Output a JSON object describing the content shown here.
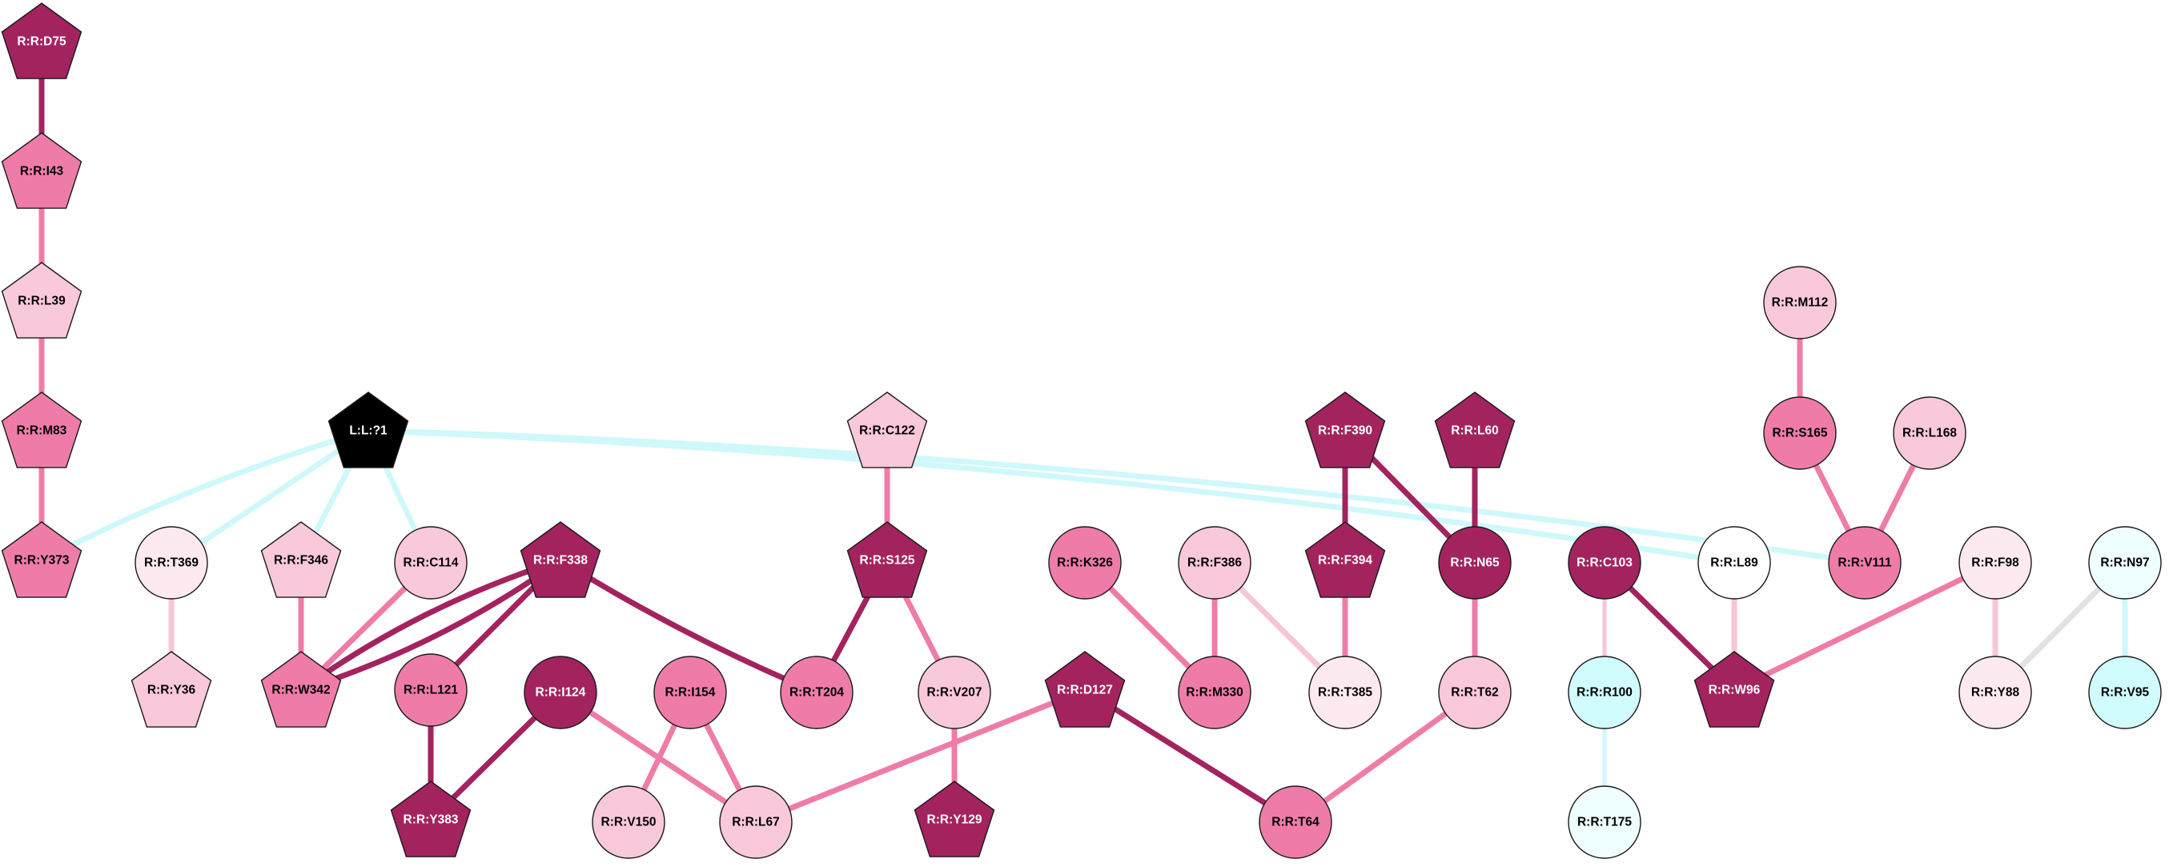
{
  "colors": {
    "dark": "#A3235F",
    "mid": "#EF7CA8",
    "light": "#FAC8DB",
    "pale": "#FDEAF1",
    "white": "#FFFFFF",
    "cyan": "#D0FCFD",
    "cyan_pale": "#EFFEFE",
    "black": "#000000",
    "edge_dark": "#A3235F",
    "edge_mid": "#EF7CA8",
    "edge_light": "#F6C6D6",
    "edge_cyan": "#CFF8FB",
    "edge_grey": "#E2E2E2"
  },
  "nodes": [
    {
      "id": "R:R:D75",
      "label": "R:R:D75",
      "shape": "pentagon",
      "fill": "dark",
      "text": "white"
    },
    {
      "id": "R:R:I43",
      "label": "R:R:I43",
      "shape": "pentagon",
      "fill": "mid",
      "text": "black"
    },
    {
      "id": "R:R:L39",
      "label": "R:R:L39",
      "shape": "pentagon",
      "fill": "light",
      "text": "black"
    },
    {
      "id": "R:R:M83",
      "label": "R:R:M83",
      "shape": "pentagon",
      "fill": "mid",
      "text": "black"
    },
    {
      "id": "R:R:Y373",
      "label": "R:R:Y373",
      "shape": "pentagon",
      "fill": "mid",
      "text": "black"
    },
    {
      "id": "L:L:?1",
      "label": "L:L:?1",
      "shape": "pentagon",
      "fill": "black",
      "text": "white"
    },
    {
      "id": "R:R:T369",
      "label": "R:R:T369",
      "shape": "circle",
      "fill": "pale",
      "text": "black"
    },
    {
      "id": "R:R:Y36",
      "label": "R:R:Y36",
      "shape": "pentagon",
      "fill": "light",
      "text": "black"
    },
    {
      "id": "R:R:F346",
      "label": "R:R:F346",
      "shape": "pentagon",
      "fill": "light",
      "text": "black"
    },
    {
      "id": "R:R:C114",
      "label": "R:R:C114",
      "shape": "circle",
      "fill": "light",
      "text": "black"
    },
    {
      "id": "R:R:W342",
      "label": "R:R:W342",
      "shape": "pentagon",
      "fill": "mid",
      "text": "black"
    },
    {
      "id": "R:R:F338",
      "label": "R:R:F338",
      "shape": "pentagon",
      "fill": "dark",
      "text": "white"
    },
    {
      "id": "R:R:L121",
      "label": "R:R:L121",
      "shape": "circle",
      "fill": "mid",
      "text": "black"
    },
    {
      "id": "R:R:Y383",
      "label": "R:R:Y383",
      "shape": "pentagon",
      "fill": "dark",
      "text": "white"
    },
    {
      "id": "R:R:I124",
      "label": "R:R:I124",
      "shape": "circle",
      "fill": "dark",
      "text": "white"
    },
    {
      "id": "R:R:I154",
      "label": "R:R:I154",
      "shape": "circle",
      "fill": "mid",
      "text": "black"
    },
    {
      "id": "R:R:V150",
      "label": "R:R:V150",
      "shape": "circle",
      "fill": "light",
      "text": "black"
    },
    {
      "id": "R:R:L67",
      "label": "R:R:L67",
      "shape": "circle",
      "fill": "light",
      "text": "black"
    },
    {
      "id": "R:R:C122",
      "label": "R:R:C122",
      "shape": "pentagon",
      "fill": "light",
      "text": "black"
    },
    {
      "id": "R:R:S125",
      "label": "R:R:S125",
      "shape": "pentagon",
      "fill": "dark",
      "text": "white"
    },
    {
      "id": "R:R:T204",
      "label": "R:R:T204",
      "shape": "circle",
      "fill": "mid",
      "text": "black"
    },
    {
      "id": "R:R:V207",
      "label": "R:R:V207",
      "shape": "circle",
      "fill": "light",
      "text": "black"
    },
    {
      "id": "R:R:Y129",
      "label": "R:R:Y129",
      "shape": "pentagon",
      "fill": "dark",
      "text": "white"
    },
    {
      "id": "R:R:K326",
      "label": "R:R:K326",
      "shape": "circle",
      "fill": "mid",
      "text": "black"
    },
    {
      "id": "R:R:D127",
      "label": "R:R:D127",
      "shape": "pentagon",
      "fill": "dark",
      "text": "white"
    },
    {
      "id": "R:R:F386",
      "label": "R:R:F386",
      "shape": "circle",
      "fill": "light",
      "text": "black"
    },
    {
      "id": "R:R:M330",
      "label": "R:R:M330",
      "shape": "circle",
      "fill": "mid",
      "text": "black"
    },
    {
      "id": "R:R:T385",
      "label": "R:R:T385",
      "shape": "circle",
      "fill": "pale",
      "text": "black"
    },
    {
      "id": "R:R:F390",
      "label": "R:R:F390",
      "shape": "pentagon",
      "fill": "dark",
      "text": "white"
    },
    {
      "id": "R:R:F394",
      "label": "R:R:F394",
      "shape": "pentagon",
      "fill": "dark",
      "text": "white"
    },
    {
      "id": "R:R:L60",
      "label": "R:R:L60",
      "shape": "pentagon",
      "fill": "dark",
      "text": "white"
    },
    {
      "id": "R:R:N65",
      "label": "R:R:N65",
      "shape": "circle",
      "fill": "dark",
      "text": "white"
    },
    {
      "id": "R:R:T62",
      "label": "R:R:T62",
      "shape": "circle",
      "fill": "light",
      "text": "black"
    },
    {
      "id": "R:R:T64",
      "label": "R:R:T64",
      "shape": "circle",
      "fill": "mid",
      "text": "black"
    },
    {
      "id": "R:R:C103",
      "label": "R:R:C103",
      "shape": "circle",
      "fill": "dark",
      "text": "white"
    },
    {
      "id": "R:R:R100",
      "label": "R:R:R100",
      "shape": "circle",
      "fill": "cyan",
      "text": "black"
    },
    {
      "id": "R:R:T175",
      "label": "R:R:T175",
      "shape": "circle",
      "fill": "cyan_pale",
      "text": "black"
    },
    {
      "id": "R:R:L89",
      "label": "R:R:L89",
      "shape": "circle",
      "fill": "white",
      "text": "black"
    },
    {
      "id": "R:R:W96",
      "label": "R:R:W96",
      "shape": "pentagon",
      "fill": "dark",
      "text": "white"
    },
    {
      "id": "R:R:M112",
      "label": "R:R:M112",
      "shape": "circle",
      "fill": "light",
      "text": "black"
    },
    {
      "id": "R:R:S165",
      "label": "R:R:S165",
      "shape": "circle",
      "fill": "mid",
      "text": "black"
    },
    {
      "id": "R:R:L168",
      "label": "R:R:L168",
      "shape": "circle",
      "fill": "light",
      "text": "black"
    },
    {
      "id": "R:R:V111",
      "label": "R:R:V111",
      "shape": "circle",
      "fill": "mid",
      "text": "black"
    },
    {
      "id": "R:R:F98",
      "label": "R:R:F98",
      "shape": "circle",
      "fill": "pale",
      "text": "black"
    },
    {
      "id": "R:R:Y88",
      "label": "R:R:Y88",
      "shape": "circle",
      "fill": "pale",
      "text": "black"
    },
    {
      "id": "R:R:N97",
      "label": "R:R:N97",
      "shape": "circle",
      "fill": "cyan_pale",
      "text": "black"
    },
    {
      "id": "R:R:V95",
      "label": "R:R:V95",
      "shape": "circle",
      "fill": "cyan",
      "text": "black"
    }
  ],
  "edges": [
    {
      "from": "R:R:D75",
      "to": "R:R:I43",
      "color": "edge_dark",
      "weight": "heavy",
      "curve": 0
    },
    {
      "from": "R:R:I43",
      "to": "R:R:L39",
      "color": "edge_mid",
      "weight": "heavy",
      "curve": 0
    },
    {
      "from": "R:R:L39",
      "to": "R:R:M83",
      "color": "edge_mid",
      "weight": "heavy",
      "curve": 0
    },
    {
      "from": "R:R:M83",
      "to": "R:R:Y373",
      "color": "edge_mid",
      "weight": "heavy",
      "curve": 0
    },
    {
      "from": "L:L:?1",
      "to": "R:R:Y373",
      "color": "edge_cyan",
      "weight": "heavy",
      "curve": 0.05
    },
    {
      "from": "L:L:?1",
      "to": "R:R:T369",
      "color": "edge_cyan",
      "weight": "heavy",
      "curve": 0
    },
    {
      "from": "L:L:?1",
      "to": "R:R:F346",
      "color": "edge_cyan",
      "weight": "heavy",
      "curve": 0
    },
    {
      "from": "L:L:?1",
      "to": "R:R:C114",
      "color": "edge_cyan",
      "weight": "heavy",
      "curve": 0
    },
    {
      "from": "L:L:?1",
      "to": "R:R:L89",
      "color": "edge_cyan",
      "weight": "heavy",
      "curve": -0.03
    },
    {
      "from": "L:L:?1",
      "to": "R:R:V111",
      "color": "edge_cyan",
      "weight": "heavy",
      "curve": -0.03
    },
    {
      "from": "R:R:T369",
      "to": "R:R:Y36",
      "color": "edge_light",
      "weight": "heavy",
      "curve": 0
    },
    {
      "from": "R:R:F346",
      "to": "R:R:W342",
      "color": "edge_mid",
      "weight": "heavy",
      "curve": 0
    },
    {
      "from": "R:R:C114",
      "to": "R:R:W342",
      "color": "edge_mid",
      "weight": "heavy",
      "curve": 0
    },
    {
      "from": "R:R:F338",
      "to": "R:R:W342",
      "color": "edge_dark",
      "weight": "heavy",
      "curve": 0.08
    },
    {
      "from": "R:R:F338",
      "to": "R:R:W342",
      "color": "edge_dark",
      "weight": "heavy",
      "curve": -0.08
    },
    {
      "from": "R:R:F338",
      "to": "R:R:L121",
      "color": "edge_dark",
      "weight": "heavy",
      "curve": 0
    },
    {
      "from": "R:R:F338",
      "to": "R:R:T204",
      "color": "edge_dark",
      "weight": "heavy",
      "curve": 0.04
    },
    {
      "from": "R:R:L121",
      "to": "R:R:Y383",
      "color": "edge_dark",
      "weight": "heavy",
      "curve": 0
    },
    {
      "from": "R:R:I124",
      "to": "R:R:Y383",
      "color": "edge_dark",
      "weight": "heavy",
      "curve": 0
    },
    {
      "from": "R:R:I124",
      "to": "R:R:L67",
      "color": "edge_mid",
      "weight": "heavy",
      "curve": 0
    },
    {
      "from": "R:R:I154",
      "to": "R:R:V150",
      "color": "edge_mid",
      "weight": "heavy",
      "curve": 0
    },
    {
      "from": "R:R:I154",
      "to": "R:R:L67",
      "color": "edge_mid",
      "weight": "heavy",
      "curve": 0
    },
    {
      "from": "R:R:C122",
      "to": "R:R:S125",
      "color": "edge_mid",
      "weight": "heavy",
      "curve": 0
    },
    {
      "from": "R:R:S125",
      "to": "R:R:T204",
      "color": "edge_dark",
      "weight": "heavy",
      "curve": 0
    },
    {
      "from": "R:R:S125",
      "to": "R:R:V207",
      "color": "edge_mid",
      "weight": "heavy",
      "curve": 0
    },
    {
      "from": "R:R:V207",
      "to": "R:R:Y129",
      "color": "edge_mid",
      "weight": "heavy",
      "curve": 0
    },
    {
      "from": "R:R:D127",
      "to": "R:R:L67",
      "color": "edge_mid",
      "weight": "heavy",
      "curve": 0
    },
    {
      "from": "R:R:D127",
      "to": "R:R:T64",
      "color": "edge_dark",
      "weight": "heavy",
      "curve": 0
    },
    {
      "from": "R:R:K326",
      "to": "R:R:M330",
      "color": "edge_mid",
      "weight": "heavy",
      "curve": 0
    },
    {
      "from": "R:R:F386",
      "to": "R:R:M330",
      "color": "edge_mid",
      "weight": "heavy",
      "curve": 0
    },
    {
      "from": "R:R:F386",
      "to": "R:R:T385",
      "color": "edge_light",
      "weight": "heavy",
      "curve": 0
    },
    {
      "from": "R:R:F390",
      "to": "R:R:F394",
      "color": "edge_dark",
      "weight": "heavy",
      "curve": 0
    },
    {
      "from": "R:R:F390",
      "to": "R:R:N65",
      "color": "edge_dark",
      "weight": "heavy",
      "curve": 0
    },
    {
      "from": "R:R:F394",
      "to": "R:R:T385",
      "color": "edge_mid",
      "weight": "heavy",
      "curve": 0
    },
    {
      "from": "R:R:L60",
      "to": "R:R:N65",
      "color": "edge_dark",
      "weight": "heavy",
      "curve": 0
    },
    {
      "from": "R:R:N65",
      "to": "R:R:T62",
      "color": "edge_mid",
      "weight": "heavy",
      "curve": 0
    },
    {
      "from": "R:R:T62",
      "to": "R:R:T64",
      "color": "edge_mid",
      "weight": "heavy",
      "curve": 0
    },
    {
      "from": "R:R:C103",
      "to": "R:R:R100",
      "color": "edge_light",
      "weight": "light",
      "curve": 0
    },
    {
      "from": "R:R:C103",
      "to": "R:R:W96",
      "color": "edge_dark",
      "weight": "heavy",
      "curve": 0
    },
    {
      "from": "R:R:R100",
      "to": "R:R:T175",
      "color": "edge_cyan",
      "weight": "light",
      "curve": 0
    },
    {
      "from": "R:R:L89",
      "to": "R:R:W96",
      "color": "edge_light",
      "weight": "heavy",
      "curve": 0
    },
    {
      "from": "R:R:F98",
      "to": "R:R:W96",
      "color": "edge_mid",
      "weight": "heavy",
      "curve": 0
    },
    {
      "from": "R:R:F98",
      "to": "R:R:Y88",
      "color": "edge_light",
      "weight": "heavy",
      "curve": 0
    },
    {
      "from": "R:R:M112",
      "to": "R:R:S165",
      "color": "edge_mid",
      "weight": "heavy",
      "curve": 0
    },
    {
      "from": "R:R:S165",
      "to": "R:R:V111",
      "color": "edge_mid",
      "weight": "heavy",
      "curve": 0
    },
    {
      "from": "R:R:L168",
      "to": "R:R:V111",
      "color": "edge_mid",
      "weight": "heavy",
      "curve": 0
    },
    {
      "from": "R:R:N97",
      "to": "R:R:Y88",
      "color": "edge_grey",
      "weight": "heavy",
      "curve": 0
    },
    {
      "from": "R:R:N97",
      "to": "R:R:V95",
      "color": "edge_cyan",
      "weight": "heavy",
      "curve": 0
    }
  ]
}
